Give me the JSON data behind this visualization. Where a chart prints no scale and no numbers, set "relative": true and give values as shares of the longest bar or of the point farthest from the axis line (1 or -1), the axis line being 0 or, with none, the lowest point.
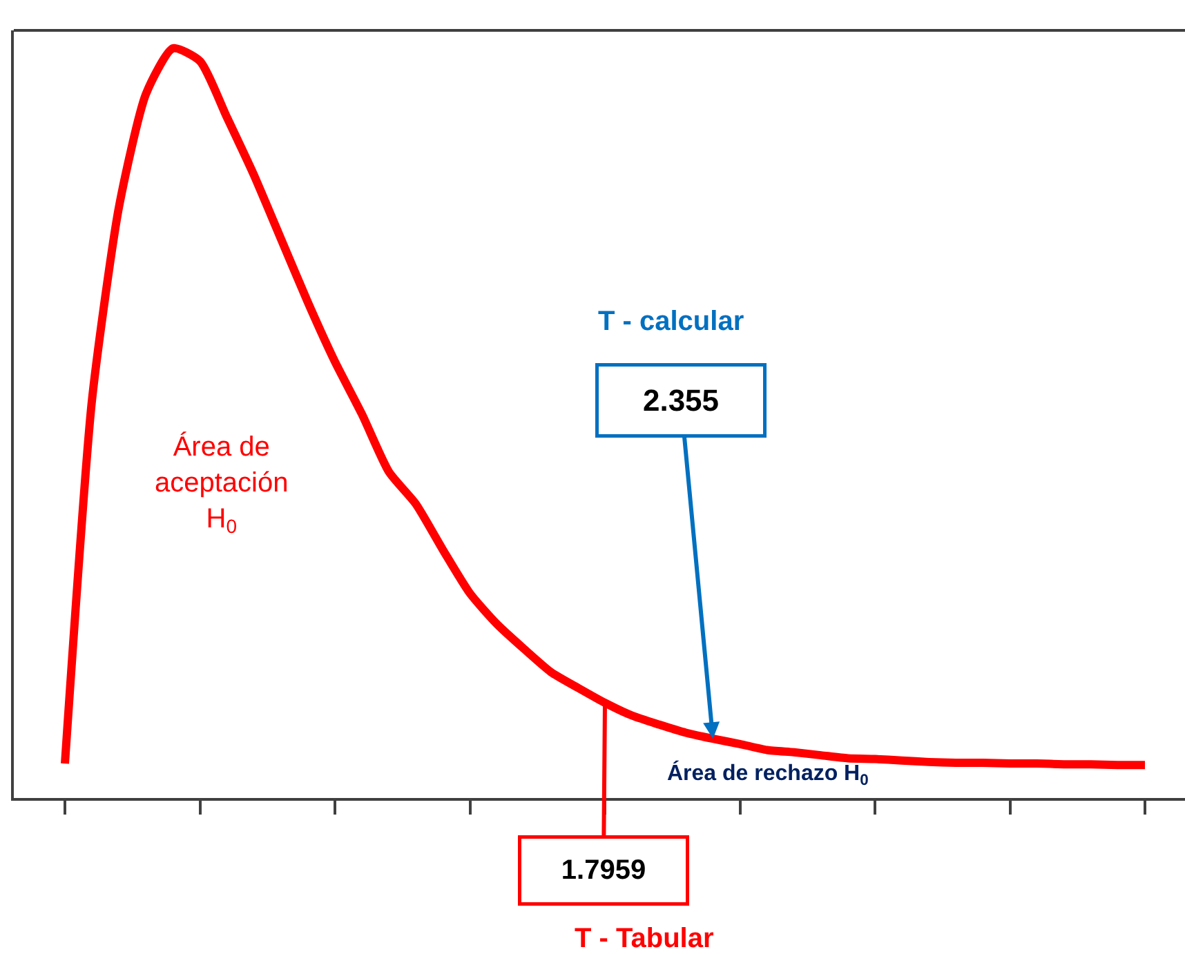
{
  "chart_data": {
    "type": "line",
    "relative": true,
    "marker": "none",
    "line_style": "solid",
    "categories": [
      null,
      null,
      null,
      null,
      null,
      null,
      null,
      null,
      null,
      null,
      null,
      null,
      null,
      null,
      null,
      null,
      null,
      null,
      null,
      null,
      null,
      null,
      null,
      null,
      null,
      null,
      null,
      null,
      null,
      null,
      null,
      null,
      null,
      null,
      null,
      null,
      null,
      null,
      null,
      null,
      null
    ],
    "series": [
      {
        "color": "#ff0000",
        "values": [
          0.046,
          0.53,
          0.788,
          0.939,
          1.0,
          0.983,
          0.908,
          0.831,
          0.746,
          0.661,
          0.582,
          0.512,
          0.435,
          0.392,
          0.331,
          0.273,
          0.232,
          0.199,
          0.168,
          0.147,
          0.127,
          0.11,
          0.098,
          0.087,
          0.079,
          0.072,
          0.064,
          0.061,
          0.057,
          0.053,
          0.052,
          0.05,
          0.048,
          0.047,
          0.047,
          0.046,
          0.046,
          0.045,
          0.045,
          0.044,
          0.044
        ]
      }
    ],
    "annotations": [
      "Área de\naceptación\nH$_{0}$",
      "T - calcular",
      "2.355",
      "Área de rechazo H$_{0}$",
      "1.7959",
      "T - Tabular"
    ]
  }
}
